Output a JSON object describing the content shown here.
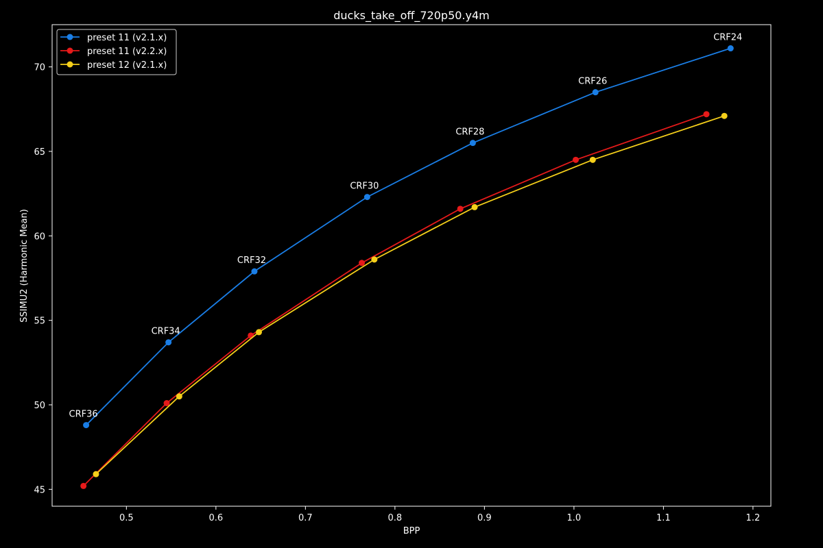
{
  "chart_data": {
    "type": "line",
    "title": "ducks_take_off_720p50.y4m",
    "xlabel": "BPP",
    "ylabel": "SSIMU2 (Harmonic Mean)",
    "xlim": [
      0.417,
      1.22
    ],
    "ylim": [
      44.0,
      72.5
    ],
    "xticks": [
      0.5,
      0.6,
      0.7,
      0.8,
      0.9,
      1.0,
      1.1,
      1.2
    ],
    "xtick_labels": [
      "0.5",
      "0.6",
      "0.7",
      "0.8",
      "0.9",
      "1.0",
      "1.1",
      "1.2"
    ],
    "yticks": [
      45,
      50,
      55,
      60,
      65,
      70
    ],
    "ytick_labels": [
      "45",
      "50",
      "55",
      "60",
      "65",
      "70"
    ],
    "grid": false,
    "legend_position": "top-left",
    "series": [
      {
        "name": "preset 11 (v2.1.x)",
        "color": "#1a7ee6",
        "x": [
          0.455,
          0.547,
          0.643,
          0.769,
          0.887,
          1.024,
          1.175
        ],
        "y": [
          48.8,
          53.7,
          57.9,
          62.3,
          65.5,
          68.5,
          71.1
        ]
      },
      {
        "name": "preset 11 (v2.2.x)",
        "color": "#e61a1a",
        "x": [
          0.452,
          0.545,
          0.639,
          0.763,
          0.873,
          1.002,
          1.148
        ],
        "y": [
          45.2,
          50.1,
          54.1,
          58.4,
          61.6,
          64.5,
          67.2
        ]
      },
      {
        "name": "preset 12 (v2.1.x)",
        "color": "#f5cf1a",
        "x": [
          0.466,
          0.559,
          0.648,
          0.777,
          0.889,
          1.021,
          1.168
        ],
        "y": [
          45.9,
          50.5,
          54.3,
          58.6,
          61.7,
          64.5,
          67.1
        ]
      }
    ],
    "annotations": [
      {
        "text": "CRF36",
        "x": 0.455,
        "y": 48.8
      },
      {
        "text": "CRF34",
        "x": 0.547,
        "y": 53.7
      },
      {
        "text": "CRF32",
        "x": 0.643,
        "y": 57.9
      },
      {
        "text": "CRF30",
        "x": 0.769,
        "y": 62.3
      },
      {
        "text": "CRF28",
        "x": 0.887,
        "y": 65.5
      },
      {
        "text": "CRF26",
        "x": 1.024,
        "y": 68.5
      },
      {
        "text": "CRF24",
        "x": 1.175,
        "y": 71.1
      }
    ]
  }
}
